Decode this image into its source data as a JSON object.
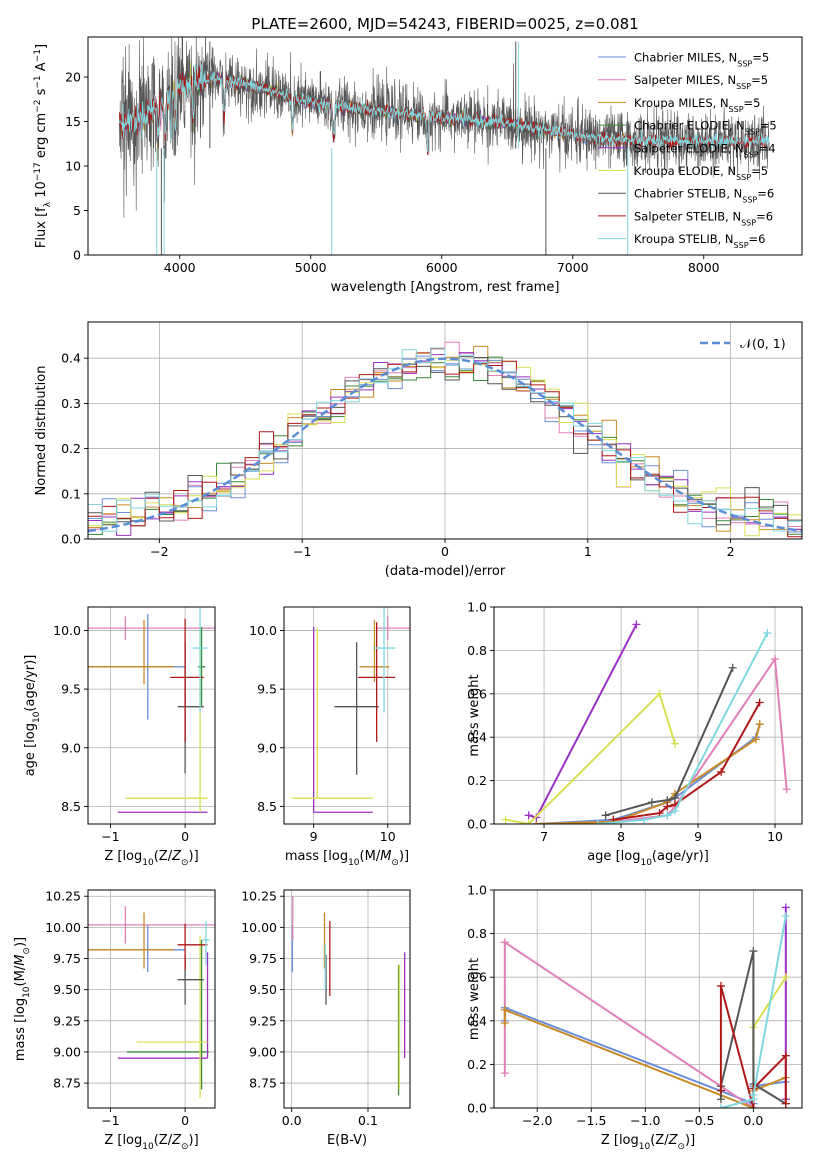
{
  "figure": {
    "title": "PLATE=2600, MJD=54243, FIBERID=0025, z=0.081",
    "colors": [
      "#6a8fd8",
      "#e07fb8",
      "#c98a26",
      "#3a8a3a",
      "#9b30c4",
      "#d9df52",
      "#555555",
      "#b01818",
      "#7fd8e0"
    ]
  },
  "chart_data": [
    {
      "id": "spectrum",
      "type": "line",
      "xlabel": "wavelength [Angstrom, rest frame]",
      "ylabel": "Flux [f_λ 10^-17 erg cm^-2 s^-1 A^-1]",
      "xlim": [
        3300,
        8750
      ],
      "ylim": [
        0,
        24.5
      ],
      "xticks": [
        4000,
        5000,
        6000,
        7000,
        8000
      ],
      "yticks": [
        0,
        5,
        10,
        15,
        20
      ],
      "grid": false,
      "legend_placement": "top-right",
      "continuum_points": {
        "x": [
          3500,
          3700,
          3900,
          4000,
          4100,
          4300,
          4500,
          4800,
          5000,
          5200,
          5500,
          5800,
          6000,
          6200,
          6500,
          6800,
          7000,
          7200,
          7500
        ],
        "y": [
          14.5,
          15.5,
          17.5,
          19.0,
          19.5,
          19.8,
          19.2,
          18.0,
          17.2,
          16.8,
          16.2,
          15.8,
          15.4,
          15.2,
          14.8,
          14.0,
          13.5,
          13.2,
          12.8
        ]
      },
      "series": [
        {
          "name": "Chabrier MILES",
          "nssp": "5",
          "x_range": [
            3540,
            7400
          ]
        },
        {
          "name": "Salpeter MILES",
          "nssp": "5",
          "x_range": [
            3540,
            7400
          ]
        },
        {
          "name": "Kroupa MILES",
          "nssp": "5",
          "x_range": [
            3540,
            7400
          ]
        },
        {
          "name": "Chabrier ELODIE",
          "nssp": "5",
          "x_range": [
            3900,
            6800
          ]
        },
        {
          "name": "Salpeter ELODIE",
          "nssp": "4",
          "x_range": [
            3900,
            6800
          ]
        },
        {
          "name": "Kroupa ELODIE",
          "nssp": "5",
          "x_range": [
            3900,
            6800
          ]
        },
        {
          "name": "Chabrier STELIB",
          "nssp": "6",
          "x_range": [
            3540,
            8500
          ]
        },
        {
          "name": "Salpeter STELIB",
          "nssp": "6",
          "x_range": [
            3540,
            8500
          ]
        },
        {
          "name": "Kroupa STELIB",
          "nssp": "6",
          "x_range": [
            3540,
            8500
          ]
        }
      ]
    },
    {
      "id": "residuals",
      "type": "bar",
      "xlabel": "(data-model)/error",
      "ylabel": "Normed distribution",
      "xlim": [
        -2.5,
        2.5
      ],
      "ylim": [
        0,
        0.48
      ],
      "xticks": [
        -2,
        -1,
        0,
        1,
        2
      ],
      "yticks": [
        0.0,
        0.1,
        0.2,
        0.3,
        0.4
      ],
      "grid": true,
      "legend_placement": "top-right",
      "reference_curve": {
        "name": "𝒩(0, 1)"
      },
      "bin_width": 0.1,
      "n_series": 9
    },
    {
      "id": "age_vs_Z",
      "type": "scatter",
      "xlabel": "Z [log10(Z/Z⊙)]",
      "ylabel": "age  [log10(age/yr)]",
      "xlim": [
        -1.3,
        0.4
      ],
      "ylim": [
        8.35,
        10.2
      ],
      "xticks": [
        -1,
        0
      ],
      "yticks": [
        8.5,
        9.0,
        9.5,
        10.0
      ],
      "grid": true,
      "points": [
        {
          "s": 0,
          "x": -0.5,
          "y": 9.69,
          "xerr": [
            0.95,
            0.5
          ],
          "yerr": [
            0.45,
            0.45
          ]
        },
        {
          "s": 1,
          "x": -0.8,
          "y": 10.02,
          "xerr": [
            1.3,
            1.3
          ],
          "yerr": [
            0.1,
            0.1
          ]
        },
        {
          "s": 2,
          "x": -0.55,
          "y": 9.69,
          "xerr": [
            0.9,
            0.4
          ],
          "yerr": [
            0.15,
            0.4
          ]
        },
        {
          "s": 3,
          "x": 0.22,
          "y": 9.69,
          "xerr": [
            0.05,
            0.05
          ],
          "yerr": [
            0.34,
            0.34
          ]
        },
        {
          "s": 4,
          "x": 0.3,
          "y": 8.45,
          "xerr": [
            1.2,
            0.0
          ],
          "yerr": [
            0.0,
            0.0
          ]
        },
        {
          "s": 5,
          "x": 0.2,
          "y": 8.57,
          "xerr": [
            1.0,
            0.1
          ],
          "yerr": [
            0.12,
            1.43
          ]
        },
        {
          "s": 6,
          "x": 0.0,
          "y": 9.35,
          "xerr": [
            0.1,
            0.25
          ],
          "yerr": [
            0.57,
            0.55
          ]
        },
        {
          "s": 7,
          "x": 0.0,
          "y": 9.6,
          "xerr": [
            0.2,
            0.25
          ],
          "yerr": [
            0.55,
            0.5
          ]
        },
        {
          "s": 8,
          "x": 0.2,
          "y": 9.85,
          "xerr": [
            0.1,
            0.1
          ],
          "yerr": [
            0.55,
            0.4
          ]
        }
      ]
    },
    {
      "id": "age_vs_mass",
      "type": "scatter",
      "xlabel": "mass [log10(M/M⊙)]",
      "ylabel": "",
      "xlim": [
        8.6,
        10.3
      ],
      "ylim": [
        8.35,
        10.2
      ],
      "xticks": [
        9,
        10
      ],
      "yticks": [
        8.5,
        9.0,
        9.5,
        10.0
      ],
      "grid": true,
      "points": [
        {
          "s": 1,
          "x": 10.0,
          "y": 10.02,
          "xerr": [
            0.15,
            0.3
          ],
          "yerr": [
            0.1,
            0.1
          ]
        },
        {
          "s": 2,
          "x": 9.82,
          "y": 9.69,
          "xerr": [
            0.2,
            0.2
          ],
          "yerr": [
            0.13,
            0.4
          ]
        },
        {
          "s": 4,
          "x": 9.0,
          "y": 8.45,
          "xerr": [
            0.0,
            0.8
          ],
          "yerr": [
            0.0,
            1.58
          ]
        },
        {
          "s": 5,
          "x": 9.05,
          "y": 8.57,
          "xerr": [
            0.35,
            0.75
          ],
          "yerr": [
            0.0,
            1.45
          ]
        },
        {
          "s": 6,
          "x": 9.58,
          "y": 9.35,
          "xerr": [
            0.3,
            0.3
          ],
          "yerr": [
            0.58,
            0.55
          ]
        },
        {
          "s": 7,
          "x": 9.85,
          "y": 9.6,
          "xerr": [
            0.25,
            0.25
          ],
          "yerr": [
            0.55,
            0.47
          ]
        },
        {
          "s": 8,
          "x": 9.95,
          "y": 9.85,
          "xerr": [
            0.15,
            0.15
          ],
          "yerr": [
            0.55,
            0.4
          ]
        }
      ]
    },
    {
      "id": "weight_vs_age",
      "type": "line",
      "xlabel": "age  [log10(age/yr)]",
      "ylabel": "mass weight",
      "xlim": [
        6.35,
        10.35
      ],
      "ylim": [
        0,
        1.0
      ],
      "xticks": [
        7,
        8,
        9,
        10
      ],
      "yticks": [
        0.0,
        0.2,
        0.4,
        0.6,
        0.8,
        1.0
      ],
      "grid": true,
      "series": [
        {
          "s": 0,
          "x": [
            6.9,
            7.9,
            8.6,
            8.7,
            9.75,
            9.8
          ],
          "y": [
            0.0,
            0.02,
            0.1,
            0.12,
            0.4,
            0.46
          ]
        },
        {
          "s": 1,
          "x": [
            6.9,
            7.9,
            8.6,
            8.7,
            10.0,
            10.15
          ],
          "y": [
            0.0,
            0.01,
            0.04,
            0.08,
            0.76,
            0.16
          ]
        },
        {
          "s": 2,
          "x": [
            6.9,
            7.9,
            8.6,
            8.7,
            9.75,
            9.8
          ],
          "y": [
            0.0,
            0.01,
            0.1,
            0.14,
            0.39,
            0.46
          ]
        },
        {
          "s": 4,
          "x": [
            6.8,
            6.9,
            8.2
          ],
          "y": [
            0.04,
            0.03,
            0.92
          ]
        },
        {
          "s": 5,
          "x": [
            6.5,
            6.8,
            8.5,
            8.7
          ],
          "y": [
            0.02,
            0.0,
            0.6,
            0.37
          ]
        },
        {
          "s": 6,
          "x": [
            7.8,
            8.4,
            8.6,
            8.7,
            9.45
          ],
          "y": [
            0.04,
            0.1,
            0.11,
            0.12,
            0.72
          ]
        },
        {
          "s": 7,
          "x": [
            7.9,
            8.5,
            8.6,
            8.7,
            9.3,
            9.8
          ],
          "y": [
            0.02,
            0.05,
            0.08,
            0.09,
            0.24,
            0.56
          ]
        },
        {
          "s": 8,
          "x": [
            7.7,
            8.3,
            8.6,
            8.7,
            9.9
          ],
          "y": [
            0.0,
            0.02,
            0.04,
            0.06,
            0.88
          ]
        }
      ]
    },
    {
      "id": "mass_vs_Z",
      "type": "scatter",
      "xlabel": "Z [log10(Z/Z⊙)]",
      "ylabel": "mass [log10(M/M⊙)]",
      "xlim": [
        -1.3,
        0.4
      ],
      "ylim": [
        8.55,
        10.3
      ],
      "xticks": [
        -1,
        0
      ],
      "yticks": [
        8.75,
        9.0,
        9.25,
        9.5,
        9.75,
        10.0,
        10.25
      ],
      "grid": true,
      "points": [
        {
          "s": 0,
          "x": -0.5,
          "y": 9.82,
          "xerr": [
            0.95,
            0.5
          ],
          "yerr": [
            0.18,
            0.2
          ]
        },
        {
          "s": 1,
          "x": -0.8,
          "y": 10.02,
          "xerr": [
            1.3,
            1.3
          ],
          "yerr": [
            0.15,
            0.15
          ]
        },
        {
          "s": 2,
          "x": -0.55,
          "y": 9.82,
          "xerr": [
            0.9,
            0.4
          ],
          "yerr": [
            0.15,
            0.3
          ]
        },
        {
          "s": 3,
          "x": 0.22,
          "y": 9.0,
          "xerr": [
            1.0,
            0.1
          ],
          "yerr": [
            0.3,
            0.9
          ]
        },
        {
          "s": 4,
          "x": 0.3,
          "y": 8.95,
          "xerr": [
            1.2,
            0.0
          ],
          "yerr": [
            0.0,
            0.85
          ]
        },
        {
          "s": 5,
          "x": 0.2,
          "y": 9.08,
          "xerr": [
            0.85,
            0.1
          ],
          "yerr": [
            0.45,
            0.85
          ]
        },
        {
          "s": 6,
          "x": 0.0,
          "y": 9.58,
          "xerr": [
            0.1,
            0.25
          ],
          "yerr": [
            0.2,
            0.2
          ]
        },
        {
          "s": 7,
          "x": 0.0,
          "y": 9.86,
          "xerr": [
            0.1,
            0.3
          ],
          "yerr": [
            0.2,
            0.17
          ]
        },
        {
          "s": 8,
          "x": 0.28,
          "y": 9.9,
          "xerr": [
            0.05,
            0.05
          ],
          "yerr": [
            0.2,
            0.15
          ]
        }
      ]
    },
    {
      "id": "mass_vs_ebv",
      "type": "scatter",
      "xlabel": "E(B-V)",
      "ylabel": "",
      "xlim": [
        -0.01,
        0.155
      ],
      "ylim": [
        8.55,
        10.3
      ],
      "xticks": [
        0.0,
        0.1
      ],
      "yticks": [
        8.75,
        9.0,
        9.25,
        9.5,
        9.75,
        10.0,
        10.25
      ],
      "grid": true,
      "points": [
        {
          "s": 0,
          "x": 0.001,
          "y": 9.82,
          "xerr": [
            0,
            0
          ],
          "yerr": [
            0.18,
            0.2
          ]
        },
        {
          "s": 1,
          "x": 0.0015,
          "y": 10.05,
          "xerr": [
            0,
            0
          ],
          "yerr": [
            0.15,
            0.2
          ]
        },
        {
          "s": 2,
          "x": 0.043,
          "y": 9.82,
          "xerr": [
            0,
            0
          ],
          "yerr": [
            0.15,
            0.3
          ]
        },
        {
          "s": 3,
          "x": 0.14,
          "y": 9.0,
          "xerr": [
            0,
            0
          ],
          "yerr": [
            0.35,
            0.7
          ]
        },
        {
          "s": 4,
          "x": 0.148,
          "y": 9.3,
          "xerr": [
            0,
            0
          ],
          "yerr": [
            0.35,
            0.5
          ]
        },
        {
          "s": 5,
          "x": 0.141,
          "y": 9.2,
          "xerr": [
            0,
            0
          ],
          "yerr": [
            0.5,
            0.5
          ]
        },
        {
          "s": 6,
          "x": 0.045,
          "y": 9.58,
          "xerr": [
            0,
            0
          ],
          "yerr": [
            0.2,
            0.2
          ]
        },
        {
          "s": 7,
          "x": 0.05,
          "y": 9.7,
          "xerr": [
            0,
            0
          ],
          "yerr": [
            0.25,
            0.35
          ]
        },
        {
          "s": 8,
          "x": 0.044,
          "y": 9.68,
          "xerr": [
            0,
            0
          ],
          "yerr": [
            0.18,
            0.18
          ]
        }
      ]
    },
    {
      "id": "weight_vs_Z",
      "type": "line",
      "xlabel": "Z [log10(Z/Z⊙)]",
      "ylabel": "mass weight",
      "xlim": [
        -2.4,
        0.45
      ],
      "ylim": [
        0,
        1.0
      ],
      "xticks": [
        -2.0,
        -1.5,
        -1.0,
        -0.5,
        0.0
      ],
      "yticks": [
        0.0,
        0.2,
        0.4,
        0.6,
        0.8,
        1.0
      ],
      "grid": true,
      "series": [
        {
          "s": 0,
          "x": [
            -2.3,
            -2.3,
            0.0,
            0.0,
            0.3
          ],
          "y": [
            0.4,
            0.46,
            0.02,
            0.1,
            0.12
          ]
        },
        {
          "s": 1,
          "x": [
            -2.3,
            -2.3,
            0.0,
            0.0
          ],
          "y": [
            0.16,
            0.76,
            0.0,
            0.08
          ]
        },
        {
          "s": 2,
          "x": [
            -2.3,
            -2.3,
            0.0,
            0.0,
            0.3
          ],
          "y": [
            0.39,
            0.45,
            0.0,
            0.08,
            0.14
          ]
        },
        {
          "s": 4,
          "x": [
            0.3,
            0.3
          ],
          "y": [
            0.04,
            0.92
          ]
        },
        {
          "s": 5,
          "x": [
            0.0,
            0.0,
            0.3
          ],
          "y": [
            0.0,
            0.37,
            0.6
          ]
        },
        {
          "s": 6,
          "x": [
            -0.3,
            -0.3,
            0.0,
            0.0,
            0.3
          ],
          "y": [
            0.04,
            0.1,
            0.72,
            0.11,
            0.02
          ]
        },
        {
          "s": 7,
          "x": [
            -0.3,
            -0.3,
            0.0,
            0.0,
            0.3,
            0.3
          ],
          "y": [
            0.08,
            0.56,
            0.0,
            0.09,
            0.24,
            0.02
          ]
        },
        {
          "s": 8,
          "x": [
            -0.3,
            0.0,
            0.0,
            0.3
          ],
          "y": [
            0.0,
            0.04,
            0.06,
            0.88
          ]
        }
      ]
    }
  ]
}
